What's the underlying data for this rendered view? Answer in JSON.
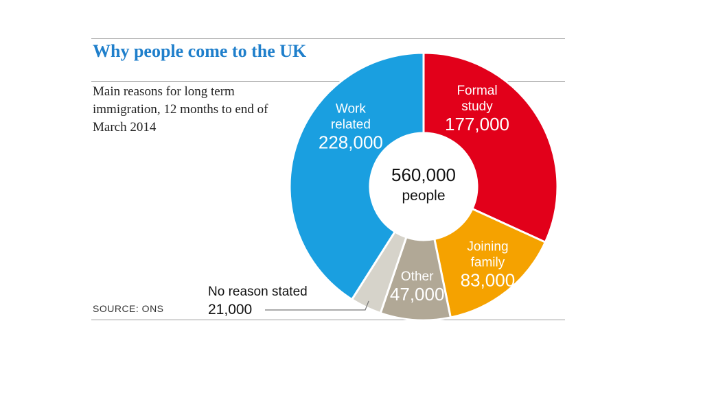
{
  "header": {
    "title": "Why people come to the UK",
    "subtitle": "Main reasons for long term immigration, 12 months to end of March 2014"
  },
  "footer": {
    "source": "SOURCE: ONS"
  },
  "chart_data": {
    "type": "pie",
    "title": "Why people come to the UK",
    "subtitle": "Main reasons for long term immigration, 12 months to end of March 2014",
    "total": 560000,
    "center_label": {
      "value": "560,000",
      "unit": "people"
    },
    "slices": [
      {
        "name": "Formal study",
        "label_lines": [
          "Formal",
          "study"
        ],
        "value": 177000,
        "value_label": "177,000",
        "color": "#e2001a"
      },
      {
        "name": "Joining family",
        "label_lines": [
          "Joining",
          "family"
        ],
        "value": 83000,
        "value_label": "83,000",
        "color": "#f5a200"
      },
      {
        "name": "Other",
        "label_lines": [
          "Other"
        ],
        "value": 47000,
        "value_label": "47,000",
        "color": "#b1a896"
      },
      {
        "name": "No reason stated",
        "label_lines": [
          "No reason stated"
        ],
        "value": 21000,
        "value_label": "21,000",
        "color": "#d6d3ca"
      },
      {
        "name": "Work related",
        "label_lines": [
          "Work",
          "related"
        ],
        "value": 228000,
        "value_label": "228,000",
        "color": "#1a9fe0"
      }
    ]
  }
}
